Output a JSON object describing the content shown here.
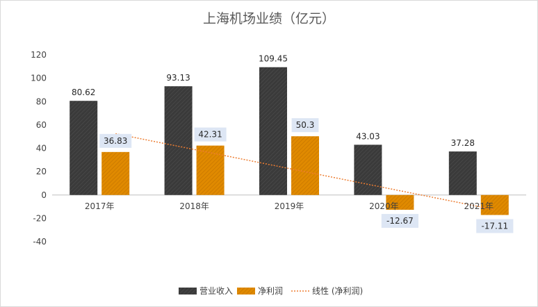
{
  "chart_data": {
    "type": "bar",
    "title": "上海机场业绩（亿元）",
    "categories": [
      "2017年",
      "2018年",
      "2019年",
      "2020年",
      "2021年"
    ],
    "series": [
      {
        "name": "营业收入",
        "values": [
          80.62,
          93.13,
          109.45,
          43.03,
          37.28
        ],
        "color": "#3a3a3a"
      },
      {
        "name": "净利润",
        "values": [
          36.83,
          42.31,
          50.3,
          -12.67,
          -17.11
        ],
        "color": "#e08a00"
      }
    ],
    "data_labels": {
      "营业收入": [
        "80.62",
        "93.13",
        "109.45",
        "43.03",
        "37.28"
      ],
      "净利润": [
        "36.83",
        "42.31",
        "50.3",
        "-12.67",
        "-17.11"
      ]
    },
    "trendline": {
      "name": "线性 (净利润)",
      "type": "linear",
      "of_series": "净利润",
      "color": "#ed7d31"
    },
    "y_ticks": [
      "120",
      "100",
      "80",
      "60",
      "40",
      "20",
      "0",
      "-20",
      "-40"
    ],
    "ylim": [
      -40,
      120
    ],
    "xlabel": "",
    "ylabel": "",
    "grid": false,
    "legend": "bottom"
  }
}
